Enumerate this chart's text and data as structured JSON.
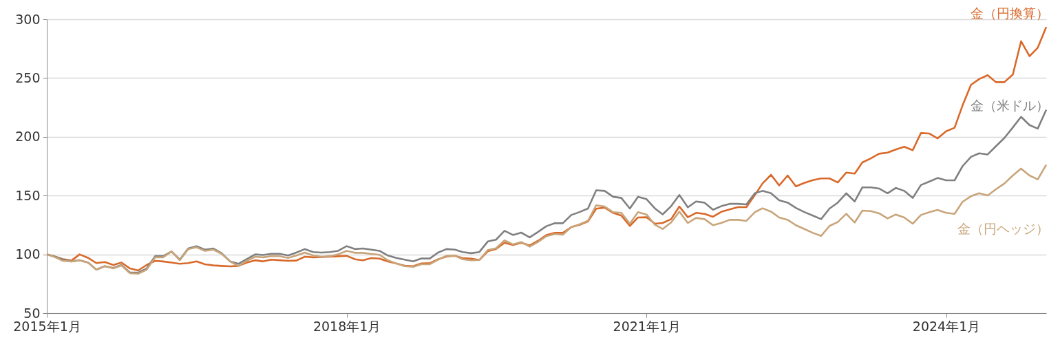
{
  "chart_data": {
    "type": "line",
    "x": [
      "2015-01",
      "2015-02",
      "2015-03",
      "2015-04",
      "2015-05",
      "2015-06",
      "2015-07",
      "2015-08",
      "2015-09",
      "2015-10",
      "2015-11",
      "2015-12",
      "2016-01",
      "2016-02",
      "2016-03",
      "2016-04",
      "2016-05",
      "2016-06",
      "2016-07",
      "2016-08",
      "2016-09",
      "2016-10",
      "2016-11",
      "2016-12",
      "2017-01",
      "2017-02",
      "2017-03",
      "2017-04",
      "2017-05",
      "2017-06",
      "2017-07",
      "2017-08",
      "2017-09",
      "2017-10",
      "2017-11",
      "2017-12",
      "2018-01",
      "2018-02",
      "2018-03",
      "2018-04",
      "2018-05",
      "2018-06",
      "2018-07",
      "2018-08",
      "2018-09",
      "2018-10",
      "2018-11",
      "2018-12",
      "2019-01",
      "2019-02",
      "2019-03",
      "2019-04",
      "2019-05",
      "2019-06",
      "2019-07",
      "2019-08",
      "2019-09",
      "2019-10",
      "2019-11",
      "2019-12",
      "2020-01",
      "2020-02",
      "2020-03",
      "2020-04",
      "2020-05",
      "2020-06",
      "2020-07",
      "2020-08",
      "2020-09",
      "2020-10",
      "2020-11",
      "2020-12",
      "2021-01",
      "2021-02",
      "2021-03",
      "2021-04",
      "2021-05",
      "2021-06",
      "2021-07",
      "2021-08",
      "2021-09",
      "2021-10",
      "2021-11",
      "2021-12",
      "2022-01",
      "2022-02",
      "2022-03",
      "2022-04",
      "2022-05",
      "2022-06",
      "2022-07",
      "2022-08",
      "2022-09",
      "2022-10",
      "2022-11",
      "2022-12",
      "2023-01",
      "2023-02",
      "2023-03",
      "2023-04",
      "2023-05",
      "2023-06",
      "2023-07",
      "2023-08",
      "2023-09",
      "2023-10",
      "2023-11",
      "2023-12",
      "2024-01",
      "2024-02",
      "2024-03",
      "2024-04",
      "2024-05",
      "2024-06",
      "2024-07",
      "2024-08",
      "2024-09",
      "2024-10",
      "2024-11",
      "2024-12",
      "2025-01"
    ],
    "series": [
      {
        "name": "金（円換算）",
        "color": "#d9692a",
        "values": [
          100,
          98,
          96,
          94.7,
          100,
          97,
          92.6,
          93.5,
          91,
          93,
          88,
          86.3,
          91,
          94.5,
          94,
          93,
          92,
          92.6,
          94,
          91.6,
          90.6,
          90.2,
          89.8,
          90.2,
          93,
          95,
          94,
          95.5,
          95,
          94.5,
          94.7,
          98,
          97.5,
          97.7,
          98,
          98.4,
          98.8,
          95.8,
          94.9,
          96.8,
          96.4,
          93.9,
          92.3,
          90.4,
          90,
          92.3,
          92.5,
          95.8,
          98.2,
          98.8,
          96.8,
          96.4,
          95.2,
          102.7,
          104.6,
          109.9,
          108,
          109.9,
          107.6,
          111.5,
          116.4,
          118.3,
          118.3,
          123.2,
          125.1,
          128,
          138.8,
          139.8,
          135.3,
          133,
          124.2,
          131.4,
          131.6,
          126.1,
          126.7,
          130,
          140.7,
          131.6,
          135.3,
          134.5,
          132,
          136.2,
          138.2,
          140.2,
          140.2,
          150.5,
          160.3,
          167.7,
          158.7,
          167.1,
          157.9,
          160.8,
          163.2,
          164.6,
          164.6,
          161.2,
          169.6,
          168.7,
          178.2,
          181.7,
          185.6,
          186.6,
          189.2,
          191.5,
          188.6,
          203.2,
          202.8,
          198.7,
          204.7,
          207.7,
          226.6,
          244.2,
          249.1,
          252.4,
          246.5,
          246.5,
          253,
          281.3,
          268.6,
          275.8,
          293.4
        ]
      },
      {
        "name": "金（米ドル）",
        "color": "#808080",
        "values": [
          100,
          98,
          95.5,
          94,
          95,
          93,
          87,
          90,
          88.5,
          91,
          84.5,
          84.5,
          88,
          98.5,
          98.5,
          102.5,
          95.5,
          105,
          107,
          104,
          105,
          101,
          94,
          92,
          96,
          100,
          99.5,
          100.5,
          100.5,
          99,
          101.5,
          104.5,
          102,
          101.5,
          102,
          103,
          107,
          104.5,
          105,
          104,
          103,
          99,
          97,
          95.5,
          94,
          96.5,
          96.5,
          101.5,
          104.5,
          104,
          102,
          101,
          102,
          111,
          112.5,
          120,
          116.5,
          118.5,
          114.5,
          119,
          124,
          126.5,
          126.5,
          133.5,
          136,
          139,
          154.5,
          154,
          149,
          148,
          139,
          149,
          147,
          139,
          134,
          141,
          150.5,
          140,
          145,
          144,
          138,
          141,
          143,
          143,
          142.5,
          152,
          154,
          152,
          146,
          144,
          139.5,
          136,
          133,
          130,
          139,
          144,
          152,
          145,
          157,
          157,
          156,
          152,
          156.5,
          154,
          148,
          159,
          162,
          165,
          163,
          163,
          175,
          183,
          186,
          185,
          192,
          199,
          208,
          217,
          210,
          207,
          223
        ]
      },
      {
        "name": "金（円ヘッジ）",
        "color": "#c8a57a",
        "values": [
          100,
          97.5,
          94.5,
          94,
          95,
          93,
          87,
          90,
          88,
          90.5,
          84,
          83.5,
          87,
          97.5,
          97.5,
          102.5,
          95,
          104.5,
          106,
          103,
          104,
          100.5,
          94,
          90,
          94.5,
          98,
          97.5,
          98.5,
          98.5,
          97,
          99,
          101.5,
          99,
          98,
          98.5,
          100,
          103,
          101.3,
          101.3,
          100.4,
          99.6,
          94.9,
          92.3,
          90,
          89.4,
          91.6,
          91.6,
          95.5,
          98.8,
          98.8,
          95.8,
          94.9,
          95.2,
          103.7,
          105.2,
          111.9,
          108.5,
          110.5,
          106.6,
          110.5,
          115.4,
          117.3,
          116.7,
          123.2,
          125.5,
          128.6,
          141.7,
          140.7,
          135.9,
          135.3,
          126.1,
          135.9,
          133.9,
          125.1,
          121.6,
          127.1,
          136.4,
          126.7,
          131,
          130,
          124.8,
          126.7,
          129.4,
          129.4,
          128.5,
          135.9,
          139.2,
          136.4,
          131.4,
          129.4,
          124.8,
          121.6,
          118.3,
          115.7,
          124.2,
          127.5,
          134.5,
          127.1,
          137.2,
          136.8,
          134.9,
          130.6,
          133.9,
          131.4,
          126.1,
          133.5,
          135.9,
          137.8,
          135.3,
          134.5,
          144.7,
          149.5,
          152,
          150.1,
          155.4,
          160.3,
          167.1,
          173,
          167.1,
          163.8,
          176.3
        ]
      }
    ],
    "xlim": [
      "2015-01",
      "2025-01"
    ],
    "xticks": [
      {
        "value": "2015-01",
        "label": "2015年1月"
      },
      {
        "value": "2018-01",
        "label": "2018年1月"
      },
      {
        "value": "2021-01",
        "label": "2021年1月"
      },
      {
        "value": "2024-01",
        "label": "2024年1月"
      }
    ],
    "ylim": [
      50,
      300
    ],
    "yticks": [
      50,
      100,
      150,
      200,
      250,
      300
    ],
    "grid": "y",
    "legend": false,
    "line_style": "solid",
    "marker": "none"
  }
}
